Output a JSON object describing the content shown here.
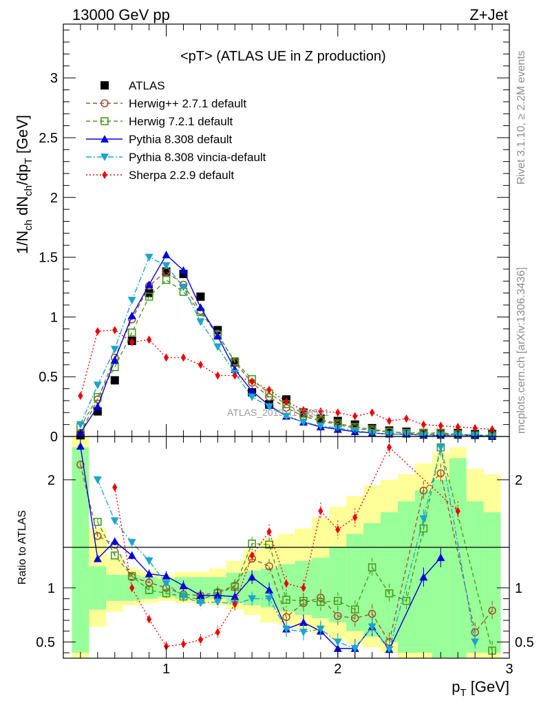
{
  "header": {
    "left": "13000 GeV pp",
    "right": "Z+Jet"
  },
  "side_labels": {
    "top": "Rivet 3.1.10, ≥ 2.2M events",
    "bottom": "mcplots.cern.ch [arXiv:1306.3436]"
  },
  "watermark": "ATLAS_2019_I1736531",
  "axes": {
    "main_ylabel": "1/N_ch dN_ch/dp_T [GeV]",
    "ratio_ylabel": "Ratio to ATLAS",
    "xlabel": "p_T [GeV]",
    "x_ticks": [
      "1",
      "2",
      "3"
    ],
    "main_y_ticks": [
      "0",
      "0.5",
      "1",
      "1.5",
      "2",
      "2.5",
      "3"
    ],
    "ratio_y_ticks": [
      "0.5",
      "1",
      "2"
    ]
  },
  "chart_data": {
    "type": "line",
    "title": "<pT> (ATLAS UE in Z production)",
    "xlabel": "p_T [GeV]",
    "ylabel": "1/N_ch dN_ch/dp_T [GeV]",
    "xlim": [
      0.4,
      3.0
    ],
    "ylim": [
      0,
      3.45
    ],
    "ratio_ylim": [
      0.35,
      2.4
    ],
    "grid": false,
    "legend_position": "top-left",
    "x": [
      0.5,
      0.6,
      0.7,
      0.8,
      0.9,
      1.0,
      1.1,
      1.2,
      1.3,
      1.4,
      1.5,
      1.6,
      1.7,
      1.8,
      1.9,
      2.0,
      2.1,
      2.2,
      2.3,
      2.4,
      2.5,
      2.6,
      2.7,
      2.8,
      2.9
    ],
    "series": [
      {
        "name": "ATLAS",
        "color": "#000000",
        "marker": "square-filled",
        "style": "none",
        "values": [
          0.01,
          0.21,
          0.47,
          0.8,
          1.2,
          1.38,
          1.36,
          1.17,
          0.89,
          0.62,
          0.37,
          0.27,
          0.31,
          0.2,
          0.15,
          0.13,
          0.1,
          0.07,
          0.05,
          0.04,
          0.03,
          0.03,
          0.03,
          0.02,
          0.02
        ],
        "ratio": []
      },
      {
        "name": "Herwig++ 2.7.1 default",
        "color": "#a0522d",
        "marker": "circle-open",
        "style": "dashed",
        "values": [
          0.03,
          0.31,
          0.66,
          0.98,
          1.26,
          1.38,
          1.27,
          1.05,
          0.86,
          0.62,
          0.45,
          0.33,
          0.24,
          0.17,
          0.13,
          0.1,
          0.07,
          0.05,
          0.04,
          0.03,
          0.02,
          0.02,
          0.02,
          0.01,
          0.01
        ],
        "ratio": [
          2.14,
          1.48,
          1.4,
          1.1,
          1.05,
          1.0,
          0.94,
          0.93,
          0.96,
          1.02,
          1.27,
          1.2,
          0.73,
          0.86,
          0.91,
          0.74,
          0.72,
          0.76,
          0.5,
          null,
          1.9,
          2.06,
          null,
          0.59,
          0.79
        ]
      },
      {
        "name": "Herwig 7.2.1 default",
        "color": "#4a9a1e",
        "marker": "square-open",
        "style": "dashed",
        "values": [
          0.08,
          0.33,
          0.58,
          0.87,
          1.17,
          1.31,
          1.21,
          1.04,
          0.85,
          0.63,
          0.48,
          0.36,
          0.27,
          0.19,
          0.14,
          0.11,
          0.08,
          0.06,
          0.04,
          0.03,
          0.03,
          0.03,
          0.02,
          0.01,
          0.01
        ],
        "ratio": [
          null,
          1.61,
          1.3,
          1.11,
          0.98,
          0.95,
          0.92,
          0.89,
          0.95,
          1.01,
          1.41,
          1.4,
          0.89,
          0.88,
          0.87,
          0.88,
          0.8,
          1.19,
          0.95,
          0.88,
          1.55,
          2.3,
          null,
          null,
          0.42
        ]
      },
      {
        "name": "Pythia 8.308 default",
        "color": "#0000dd",
        "marker": "triangle-up",
        "style": "solid",
        "values": [
          0.03,
          0.25,
          0.64,
          1.01,
          1.27,
          1.52,
          1.39,
          1.08,
          0.84,
          0.56,
          0.38,
          0.26,
          0.17,
          0.12,
          0.08,
          0.06,
          0.04,
          0.03,
          0.02,
          0.02,
          0.01,
          0.01,
          0.01,
          0.01,
          0.0
        ],
        "ratio": [
          2.31,
          1.27,
          1.43,
          1.3,
          1.13,
          1.11,
          1.02,
          0.93,
          0.93,
          0.92,
          1.1,
          0.98,
          0.62,
          0.68,
          0.6,
          0.44,
          0.44,
          0.64,
          0.43,
          null,
          1.1,
          1.28,
          null,
          null,
          null
        ]
      },
      {
        "name": "Pythia 8.308 vincia-default",
        "color": "#1aa5cc",
        "marker": "triangle-down",
        "style": "dashdot",
        "values": [
          0.1,
          0.43,
          0.73,
          1.14,
          1.5,
          1.43,
          1.25,
          0.96,
          0.75,
          0.53,
          0.33,
          0.25,
          0.17,
          0.12,
          0.09,
          0.07,
          0.05,
          0.03,
          0.02,
          0.02,
          0.01,
          0.01,
          0.01,
          0.01,
          0.0
        ],
        "ratio": [
          null,
          2.0,
          1.62,
          1.42,
          1.25,
          1.04,
          0.92,
          0.86,
          0.87,
          0.85,
          0.9,
          0.9,
          0.62,
          0.59,
          0.62,
          0.5,
          0.44,
          0.64,
          0.43,
          null,
          1.64,
          2.3,
          null,
          0.5,
          null
        ]
      },
      {
        "name": "Sherpa 2.2.9 default",
        "color": "#ee0000",
        "marker": "diamond",
        "style": "dotted",
        "values": [
          0.34,
          0.88,
          0.89,
          0.79,
          0.81,
          0.66,
          0.66,
          0.6,
          0.51,
          0.51,
          0.46,
          0.39,
          0.29,
          0.22,
          0.21,
          0.2,
          0.17,
          0.2,
          0.13,
          0.15,
          0.1,
          0.09,
          0.08,
          0.07,
          0.06
        ],
        "ratio": [
          null,
          null,
          1.93,
          1.0,
          0.71,
          0.46,
          0.48,
          0.52,
          0.59,
          0.85,
          1.3,
          1.52,
          1.04,
          1.0,
          1.71,
          1.54,
          1.65,
          null,
          2.3,
          null,
          null,
          null,
          1.71,
          null,
          null
        ]
      }
    ],
    "ratio_band_green": [
      [
        0.4,
        2.3
      ],
      [
        0.8,
        1.2
      ],
      [
        0.88,
        1.12
      ],
      [
        0.88,
        1.12
      ],
      [
        0.9,
        1.1
      ],
      [
        0.92,
        1.08
      ],
      [
        0.9,
        1.1
      ],
      [
        0.9,
        1.1
      ],
      [
        0.9,
        1.1
      ],
      [
        0.86,
        1.14
      ],
      [
        0.84,
        1.16
      ],
      [
        0.82,
        1.18
      ],
      [
        0.78,
        1.22
      ],
      [
        0.75,
        1.25
      ],
      [
        0.72,
        1.28
      ],
      [
        0.68,
        1.38
      ],
      [
        0.6,
        1.5
      ],
      [
        0.55,
        1.6
      ],
      [
        0.5,
        1.7
      ],
      [
        0.4,
        1.8
      ],
      [
        0.4,
        1.9
      ],
      [
        0.35,
        2.0
      ],
      [
        0.35,
        2.2
      ],
      [
        0.4,
        1.8
      ],
      [
        0.4,
        1.7
      ]
    ],
    "ratio_band_yellow": [
      [
        0.35,
        2.4
      ],
      [
        0.64,
        1.55
      ],
      [
        0.78,
        1.28
      ],
      [
        0.84,
        1.18
      ],
      [
        0.86,
        1.15
      ],
      [
        0.88,
        1.12
      ],
      [
        0.86,
        1.15
      ],
      [
        0.86,
        1.15
      ],
      [
        0.84,
        1.18
      ],
      [
        0.8,
        1.25
      ],
      [
        0.75,
        1.35
      ],
      [
        0.68,
        1.45
      ],
      [
        0.66,
        1.5
      ],
      [
        0.62,
        1.55
      ],
      [
        0.58,
        1.65
      ],
      [
        0.52,
        1.75
      ],
      [
        0.48,
        1.85
      ],
      [
        0.45,
        1.95
      ],
      [
        0.4,
        2.0
      ],
      [
        0.35,
        2.05
      ],
      [
        0.35,
        2.15
      ],
      [
        0.35,
        2.25
      ],
      [
        0.35,
        2.3
      ],
      [
        0.35,
        2.1
      ],
      [
        0.35,
        2.05
      ]
    ]
  }
}
